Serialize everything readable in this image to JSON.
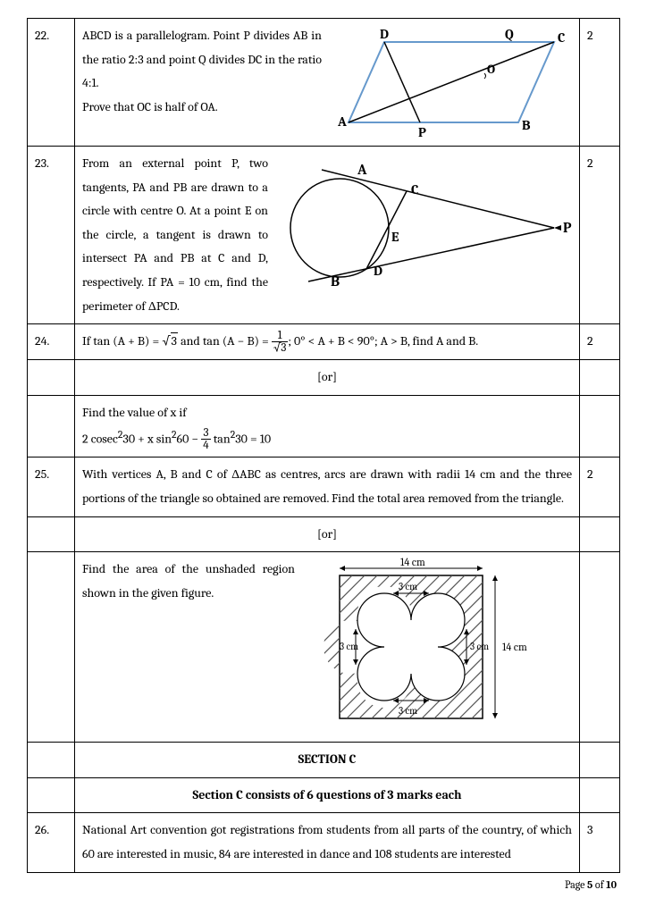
{
  "rows": [
    {
      "num": "22.",
      "marks": "2",
      "text_lines": [
        "ABCD is a parallelogram. Point P divides AB in the ratio 2:3 and point Q divides DC in the ratio 4:1.",
        "Prove that OC is half of OA."
      ],
      "fig": "parallelogram",
      "fig_labels": {
        "A": "A",
        "B": "B",
        "C": "C",
        "D": "D",
        "P": "P",
        "Q": "Q",
        "O": "O"
      }
    },
    {
      "num": "23.",
      "marks": "2",
      "text_lines": [
        "From an external point P, two tangents, PA and PB are drawn to a circle with centre O. At a point E on the circle, a tangent is drawn to intersect PA and PB at C and D, respectively. If PA = 10 cm, find the perimeter of ΔPCD."
      ],
      "fig": "circle_tangent",
      "fig_labels": {
        "A": "A",
        "B": "B",
        "C": "C",
        "D": "D",
        "E": "E",
        "P": "P"
      }
    },
    {
      "num": "24.",
      "marks": "2",
      "math_html": "If tan (A + B) = <span class='sqrt'><span class='rad'>3</span></span> and tan (A − B) = <span class='frac'><span class='num'>1</span><span class='den'>√3</span></span>; 0° &lt; A + B &lt; 90°; A &gt; B, find A and B."
    },
    {
      "or": "[or]"
    },
    {
      "math_html": "Find the value of x if<br>2 cosec<sup>2</sup>30 + x sin<sup>2</sup>60 − <span class='frac'><span class='num'>3</span><span class='den'>4</span></span> tan<sup>2</sup>30 = 10"
    },
    {
      "num": "25.",
      "marks": "2",
      "text_lines": [
        "With vertices A, B and C of ΔABC as centres, arcs are drawn with radii 14 cm and the three portions of the triangle so obtained are removed. Find the total area removed from the triangle."
      ]
    },
    {
      "or": "[or]"
    },
    {
      "text_lines": [
        "Find the area of the unshaded region shown in the given figure."
      ],
      "fig": "square_quatrefoil",
      "fig_labels": {
        "dim14": "14 cm",
        "dim3": "3 cm"
      }
    },
    {
      "section_header": "SECTION C"
    },
    {
      "section_sub": "Section C consists of 6 questions of 3 marks each"
    },
    {
      "num": "26.",
      "marks": "3",
      "text_lines": [
        "National Art convention got registrations from students from all parts of the country, of which 60 are interested in music, 84 are interested in dance and 108 students are interested"
      ]
    }
  ],
  "footer": {
    "prefix": "Page ",
    "current": "5",
    "of": " of ",
    "total": "10"
  },
  "colors": {
    "border": "#000000",
    "parallelogram_stroke": "#6699cc",
    "hatch": "#555555"
  }
}
